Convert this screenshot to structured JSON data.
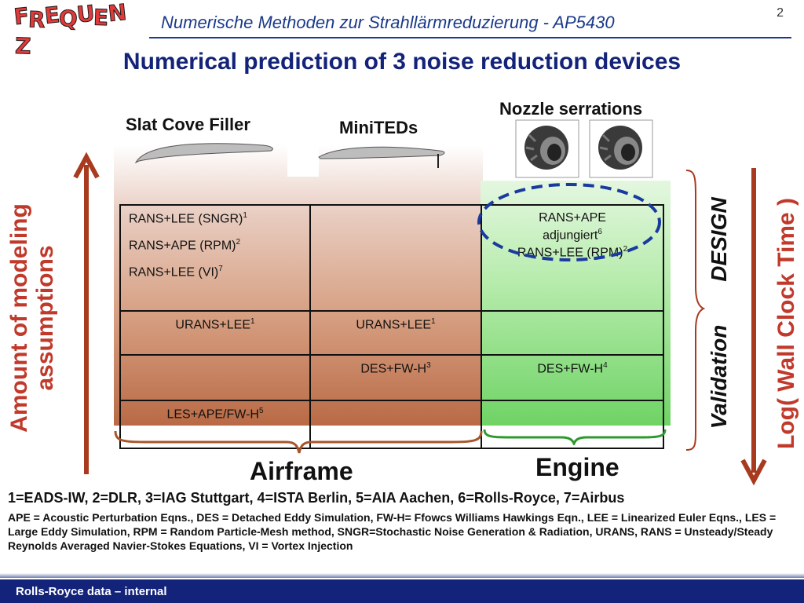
{
  "header": {
    "logo": "FREQUENZ",
    "title": "Numerische Methoden zur Strahllärmreduzierung - AP5430",
    "page_number": "2"
  },
  "main_title": "Numerical prediction of 3 noise reduction devices",
  "devices": {
    "slat": "Slat Cove Filler",
    "miniteds": "MiniTEDs",
    "nozzle": "Nozzle serrations"
  },
  "axes": {
    "left": "Amount of modeling assumptions",
    "right": "Log( Wall Clock Time )",
    "design": "DESIGN",
    "validation": "Validation"
  },
  "groups": {
    "airframe": "Airframe",
    "engine": "Engine"
  },
  "table": {
    "r1c1_a": "RANS+LEE (SNGR)",
    "r1c1_a_sup": "1",
    "r1c1_b": "RANS+APE (RPM)",
    "r1c1_b_sup": "2",
    "r1c1_c": "RANS+LEE (VI)",
    "r1c1_c_sup": "7",
    "r1c3_a": "RANS+APE",
    "r1c3_b": "adjungiert",
    "r1c3_b_sup": "6",
    "r1c3_c": "RANS+LEE (RPM)",
    "r1c3_c_sup": "2",
    "r2c1": "URANS+LEE",
    "r2c1_sup": "1",
    "r2c2": "URANS+LEE",
    "r2c2_sup": "1",
    "r3c2": "DES+FW-H",
    "r3c2_sup": "3",
    "r3c3": "DES+FW-H",
    "r3c3_sup": "4",
    "r4c1": "LES+APE/FW-H",
    "r4c1_sup": "5"
  },
  "footnotes": {
    "sources": "1=EADS-IW, 2=DLR, 3=IAG Stuttgart, 4=ISTA Berlin, 5=AIA Aachen, 6=Rolls-Royce, 7=Airbus",
    "abbreviations": "APE = Acoustic Perturbation Eqns., DES = Detached Eddy Simulation, FW-H= Ffowcs Williams Hawkings Eqn., LEE = Linearized Euler Eqns., LES = Large Eddy Simulation, RPM = Random Particle-Mesh method, SNGR=Stochastic Noise Generation & Radiation, URANS, RANS = Unsteady/Steady Reynolds Averaged Navier-Stokes Equations, VI = Vortex Injection"
  },
  "footer": {
    "text": "Rolls-Royce data – internal"
  },
  "colors": {
    "title_blue": "#13237a",
    "arrow_red": "#a83a1f",
    "airframe_brown": "#b96a45",
    "engine_green": "#6fd365",
    "highlight_ellipse": "#1a3aa0"
  }
}
